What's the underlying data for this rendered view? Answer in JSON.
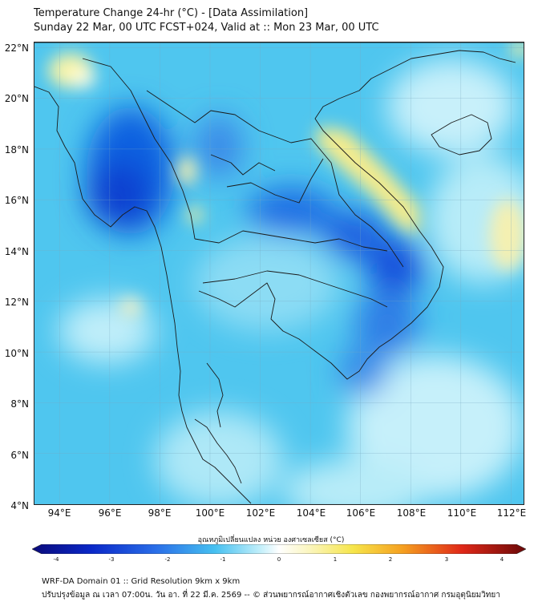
{
  "title": {
    "line1": "Temperature Change 24-hr (°C) - [Data Assimilation]",
    "line2": "Sunday 22 Mar, 00 UTC FCST+024, Valid at :: Mon 23 Mar, 00 UTC"
  },
  "chart_data": {
    "type": "heatmap",
    "lat_ticks": [
      "22°N",
      "20°N",
      "18°N",
      "16°N",
      "14°N",
      "12°N",
      "10°N",
      "8°N",
      "6°N",
      "4°N"
    ],
    "lon_ticks": [
      "94°E",
      "96°E",
      "98°E",
      "100°E",
      "102°E",
      "104°E",
      "106°E",
      "108°E",
      "110°E",
      "112°E"
    ],
    "lon_range": [
      93,
      112.5
    ],
    "lat_range": [
      4,
      22.2
    ],
    "grid": true,
    "colorbar": {
      "label": "อุณหภูมิเปลี่ยนแปลง หน่วย องศาเซลเซียส (°C)",
      "ticks": [
        "-4",
        "-3",
        "-2",
        "-1",
        "0",
        "1",
        "2",
        "3",
        "4"
      ],
      "range": [
        -4,
        4
      ]
    }
  },
  "footer": {
    "line1": "WRF-DA Domain 01 :: Grid Resolution 9km x 9km",
    "line2": "ปรับปรุงข้อมูล ณ เวลา 07:00น. วัน อา. ที่ 22 มี.ค. 2569 -- © ส่วนพยากรณ์อากาศเชิงตัวเลข กองพยากรณ์อากาศ กรมอุตุนิยมวิทยา"
  }
}
